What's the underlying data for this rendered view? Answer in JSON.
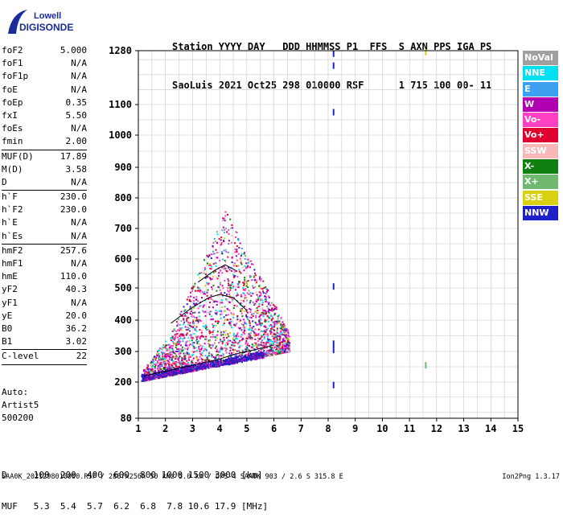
{
  "logo": {
    "line1": "Lowell",
    "line2": "DIGISONDE"
  },
  "header": {
    "line1": "Station YYYY DAY   DDD HHMMSS P1  FFS  S AXN PPS IGA PS",
    "line2": "SaoLuis 2021 Oct25 298 010000 RSF      1 715 100 00- 11"
  },
  "params": [
    {
      "name": "foF2",
      "value": "5.000"
    },
    {
      "name": "foF1",
      "value": "N/A"
    },
    {
      "name": "foF1p",
      "value": "N/A"
    },
    {
      "name": "foE",
      "value": "N/A"
    },
    {
      "name": "foEp",
      "value": "0.35"
    },
    {
      "name": "fxI",
      "value": "5.50"
    },
    {
      "name": "foEs",
      "value": "N/A"
    },
    {
      "name": "fmin",
      "value": "2.00"
    },
    {
      "sep": true
    },
    {
      "name": "MUF(D)",
      "value": "17.89"
    },
    {
      "name": "M(D)",
      "value": "3.58"
    },
    {
      "name": "D",
      "value": "N/A"
    },
    {
      "sep": true
    },
    {
      "name": "h`F",
      "value": "230.0"
    },
    {
      "name": "h`F2",
      "value": "230.0"
    },
    {
      "name": "h`E",
      "value": "N/A"
    },
    {
      "name": "h`Es",
      "value": "N/A"
    },
    {
      "sep": true
    },
    {
      "name": "hmF2",
      "value": "257.6"
    },
    {
      "name": "hmF1",
      "value": "N/A"
    },
    {
      "name": "hmE",
      "value": "110.0"
    },
    {
      "name": "yF2",
      "value": "40.3"
    },
    {
      "name": "yF1",
      "value": "N/A"
    },
    {
      "name": "yE",
      "value": "20.0"
    },
    {
      "name": "B0",
      "value": "36.2"
    },
    {
      "name": "B1",
      "value": "3.02"
    },
    {
      "sep": true
    },
    {
      "name": "C-level",
      "value": "22"
    },
    {
      "sep": true
    }
  ],
  "auto": {
    "line1": "Auto:",
    "line2": "Artist5",
    "line3": "500200"
  },
  "legend": [
    {
      "label": "NoVal",
      "color": "#a0a0a0"
    },
    {
      "label": "NNE",
      "color": "#00e0f0"
    },
    {
      "label": "E",
      "color": "#3ca0f0"
    },
    {
      "label": "W",
      "color": "#b000b0"
    },
    {
      "label": "Vo-",
      "color": "#ff40c0"
    },
    {
      "label": "Vo+",
      "color": "#e00030"
    },
    {
      "label": "SSW",
      "color": "#f8b8b8"
    },
    {
      "label": "X-",
      "color": "#108010"
    },
    {
      "label": "X+",
      "color": "#70b870"
    },
    {
      "label": "SSE",
      "color": "#d8d010"
    },
    {
      "label": "NNW",
      "color": "#2020c8"
    }
  ],
  "footer": {
    "d_row": "D     100  200  400  600  800 1000 1500 3000 [km]",
    "muf_row": "MUF   5.3  5.4  5.7  6.2  6.8  7.8 10.6 17.9 [MHz]",
    "file_line": "SAA0K_2021298010000.RSF / 280fx256h 50 kHz 5.0 km / DPS-4 SAA0K 903 / 2.6 S 315.8 E",
    "version": "Ion2Png 1.3.17"
  },
  "chart_data": {
    "type": "scatter",
    "title": "",
    "xlabel": "",
    "ylabel": "",
    "x_ticks": [
      1,
      2,
      3,
      4,
      5,
      6,
      7,
      8,
      9,
      10,
      11,
      12,
      13,
      14,
      15
    ],
    "y_ticks": [
      80,
      200,
      300,
      400,
      500,
      600,
      700,
      800,
      900,
      1000,
      1100,
      1280
    ],
    "xlim": [
      1,
      15
    ],
    "ylim": [
      80,
      1280
    ],
    "y_scale": "nonlinear",
    "grid": true,
    "legend_position": "right",
    "trace_F2": [
      [
        1.2,
        220
      ],
      [
        1.6,
        228
      ],
      [
        2.0,
        235
      ],
      [
        2.5,
        245
      ],
      [
        3.0,
        255
      ],
      [
        3.5,
        265
      ],
      [
        4.0,
        275
      ],
      [
        4.5,
        290
      ],
      [
        5.0,
        300
      ],
      [
        5.5,
        310
      ],
      [
        6.0,
        320
      ]
    ],
    "trace_F2_echo": [
      [
        2.2,
        390
      ],
      [
        3.0,
        440
      ],
      [
        3.6,
        470
      ],
      [
        4.0,
        480
      ],
      [
        4.5,
        470
      ],
      [
        5.0,
        430
      ]
    ],
    "trace_F2_multi": [
      [
        3.2,
        520
      ],
      [
        3.8,
        560
      ],
      [
        4.2,
        580
      ],
      [
        4.6,
        560
      ]
    ],
    "spurious": [
      {
        "x": 8.2,
        "y": 1270,
        "color": "#2020c8"
      },
      {
        "x": 8.2,
        "y": 1230,
        "color": "#2020c8"
      },
      {
        "x": 8.2,
        "y": 1075,
        "color": "#2020c8"
      },
      {
        "x": 8.2,
        "y": 505,
        "color": "#2020c8"
      },
      {
        "x": 8.2,
        "y": 325,
        "color": "#2020c8"
      },
      {
        "x": 8.2,
        "y": 305,
        "color": "#2020c8"
      },
      {
        "x": 8.2,
        "y": 190,
        "color": "#2020c8"
      },
      {
        "x": 11.6,
        "y": 1275,
        "color": "#d8d010"
      },
      {
        "x": 11.6,
        "y": 255,
        "color": "#70b870"
      }
    ]
  }
}
